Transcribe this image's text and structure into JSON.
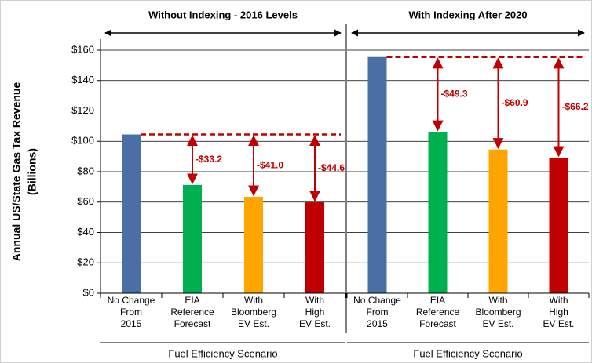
{
  "chart_data": [
    {
      "type": "bar",
      "title": "Without Indexing - 2016 Levels",
      "ylabel": [
        "Annual US/State Gas Tax Revenue",
        "(Billions)"
      ],
      "xlabel": "Fuel Efficiency Scenario",
      "categories": [
        [
          "No Change",
          "From",
          "2015"
        ],
        [
          "EIA",
          "Reference",
          "Forecast"
        ],
        [
          "With",
          "Bloomberg",
          "EV Est."
        ],
        [
          "With",
          "High",
          "EV Est."
        ]
      ],
      "values": [
        104.5,
        71.3,
        63.5,
        59.9
      ],
      "colors": [
        "#4a6fa5",
        "#00b050",
        "#ffa500",
        "#c00000"
      ],
      "annotations": [
        null,
        "-$33.2",
        "-$41.0",
        "-$44.6"
      ],
      "ylim": [
        0,
        160
      ],
      "yticks": [
        {
          "value": 0,
          "label": "$0"
        },
        {
          "value": 20,
          "label": "$20"
        },
        {
          "value": 40,
          "label": "$40"
        },
        {
          "value": 60,
          "label": "$60"
        },
        {
          "value": 80,
          "label": "$80"
        },
        {
          "value": 100,
          "label": "$100"
        },
        {
          "value": 120,
          "label": "$120"
        },
        {
          "value": 140,
          "label": "$140"
        },
        {
          "value": 160,
          "label": "$160"
        }
      ],
      "grid": true
    },
    {
      "type": "bar",
      "title": "With Indexing After 2020",
      "xlabel": "Fuel Efficiency Scenario",
      "categories": [
        [
          "No Change",
          "From",
          "2015"
        ],
        [
          "EIA",
          "Reference",
          "Forecast"
        ],
        [
          "With",
          "Bloomberg",
          "EV Est."
        ],
        [
          "With",
          "High",
          "EV Est."
        ]
      ],
      "values": [
        155.5,
        106.2,
        94.6,
        89.3
      ],
      "colors": [
        "#4a6fa5",
        "#00b050",
        "#ffa500",
        "#c00000"
      ],
      "annotations": [
        null,
        "-$49.3",
        "-$60.9",
        "-$66.2"
      ],
      "ylim": [
        0,
        160
      ],
      "grid": true
    }
  ]
}
